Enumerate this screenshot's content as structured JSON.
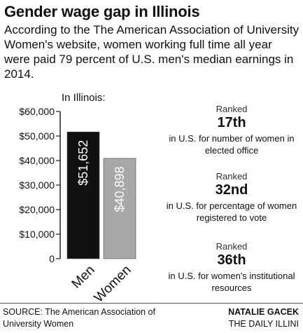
{
  "header": {
    "title": "Gender wage gap in Illinois",
    "subtitle": "According to the The American Association of University Women's website, women working full time all year were paid 79 percent of U.S. men's median earnings in 2014."
  },
  "chart_data": {
    "type": "bar",
    "subtitle": "In Illinois:",
    "categories": [
      "Men",
      "Women"
    ],
    "values": [
      51652,
      40898
    ],
    "value_labels": [
      "$51,652",
      "$40,898"
    ],
    "colors": [
      "#111111",
      "#a8a8a8"
    ],
    "ylim": [
      0,
      60000
    ],
    "yticks": [
      0,
      10000,
      20000,
      30000,
      40000,
      50000,
      60000
    ],
    "ytick_labels": [
      "0",
      "$10,000",
      "$20,000",
      "$30,000",
      "$40,000",
      "$50,000",
      "$60,000"
    ],
    "grid": false,
    "xlabel": "",
    "ylabel": ""
  },
  "rankings": [
    {
      "heading": "Ranked",
      "rank": "17th",
      "description": "in U.S. for number of women in elected office"
    },
    {
      "heading": "Ranked",
      "rank": "32nd",
      "description": "in U.S. for percentage of women registered to vote"
    },
    {
      "heading": "Ranked",
      "rank": "36th",
      "description": "in U.S. for women's institutional resources"
    }
  ],
  "footer": {
    "source": "SOURCE: The American Association of University Women",
    "byline": "NATALIE GACEK",
    "publication": "THE DAILY ILLINI"
  }
}
